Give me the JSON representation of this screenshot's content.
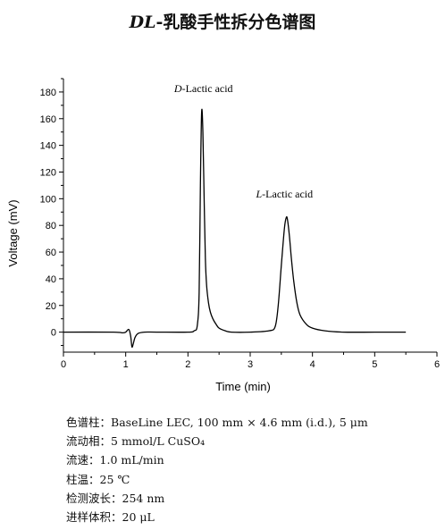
{
  "title": {
    "prefix": "DL",
    "text": "-乳酸手性拆分色谱图"
  },
  "chart_data": {
    "type": "line",
    "xlabel": "Time (min)",
    "ylabel": "Voltage (mV)",
    "xlim": [
      0,
      6
    ],
    "ylim": [
      -15,
      190
    ],
    "x_ticks": [
      0,
      1,
      2,
      3,
      4,
      5,
      6
    ],
    "y_ticks": [
      0,
      20,
      40,
      60,
      80,
      100,
      120,
      140,
      160,
      180
    ],
    "line_color": "#000000",
    "grid": false,
    "legend": "none",
    "series": [
      {
        "x": [
          0,
          0.8,
          0.95,
          1.0,
          1.05,
          1.08,
          1.1,
          1.12,
          1.15,
          1.2,
          1.3,
          1.5,
          2.0,
          2.1,
          2.15,
          2.18,
          2.2,
          2.22,
          2.24,
          2.26,
          2.28,
          2.3,
          2.33,
          2.36,
          2.4,
          2.45,
          2.5,
          2.6,
          2.7,
          3.0,
          3.3,
          3.4,
          3.45,
          3.5,
          3.55,
          3.58,
          3.6,
          3.63,
          3.66,
          3.7,
          3.75,
          3.8,
          3.9,
          4.0,
          4.2,
          4.5,
          5.0,
          5.5
        ],
        "y": [
          0,
          0,
          -0.5,
          0,
          2,
          -3,
          -11,
          -9,
          -4,
          -1,
          0,
          0,
          0,
          1,
          5,
          30,
          110,
          165,
          150,
          100,
          55,
          35,
          22,
          15,
          10,
          6,
          3,
          1,
          0,
          0,
          1,
          4,
          20,
          50,
          78,
          86,
          84,
          72,
          56,
          38,
          22,
          13,
          6,
          3,
          1,
          0,
          0,
          0
        ]
      }
    ],
    "annotations": [
      {
        "prefix": "D",
        "text": "-Lactic acid",
        "x": 2.25,
        "y": 180
      },
      {
        "prefix": "L",
        "text": "-Lactic acid",
        "x": 3.55,
        "y": 101
      }
    ]
  },
  "conditions": [
    {
      "label": "色谱柱：",
      "value": "BaseLine LEC, 100 mm × 4.6 mm (i.d.), 5 μm"
    },
    {
      "label": "流动相：",
      "value": "5 mmol/L CuSO₄"
    },
    {
      "label": "流速：",
      "value": "1.0 mL/min"
    },
    {
      "label": "柱温：",
      "value": "25  ℃"
    },
    {
      "label": "检测波长：",
      "value": "254 nm"
    },
    {
      "label": "进样体积：",
      "value": "20 μL"
    }
  ]
}
